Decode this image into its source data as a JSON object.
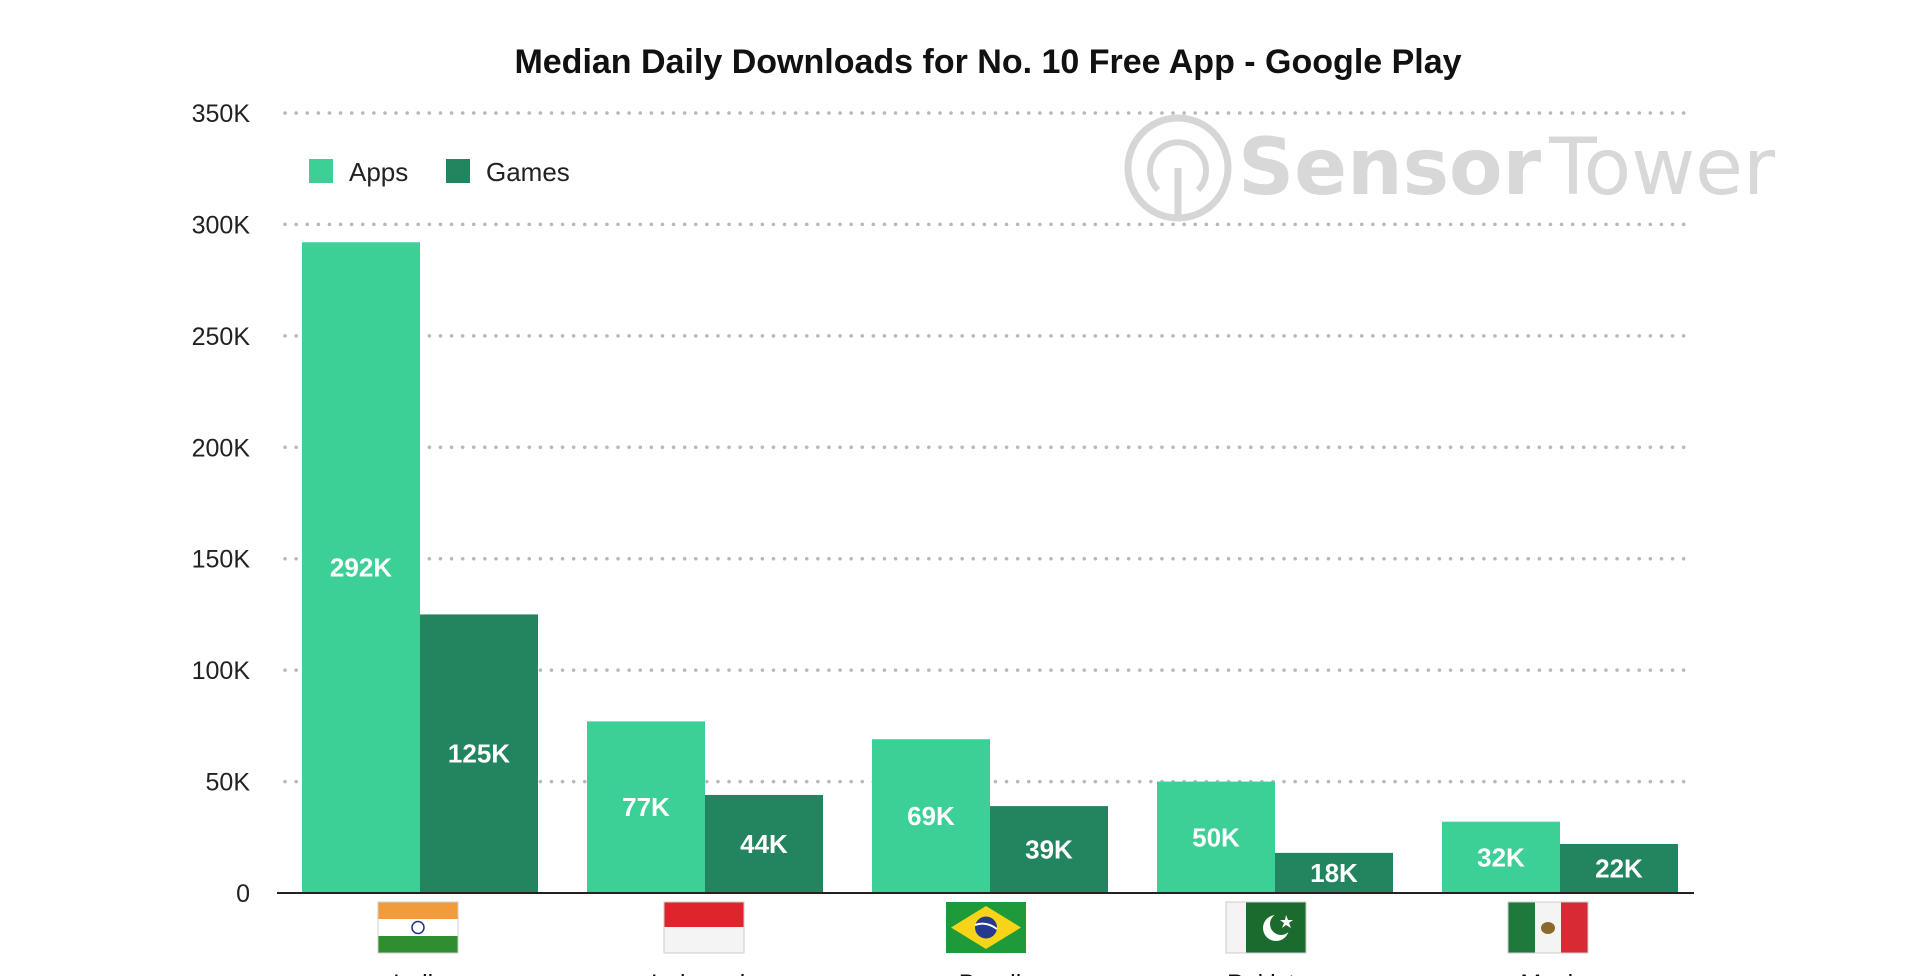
{
  "chart_data": {
    "type": "bar",
    "title": "Median Daily Downloads for No. 10 Free App - Google Play",
    "xlabel": "",
    "ylabel": "",
    "categories": [
      "India",
      "Indonesia",
      "Brazil",
      "Pakistan",
      "Mexico"
    ],
    "series": [
      {
        "name": "Apps",
        "color": "#3ccf96",
        "values": [
          292000,
          77000,
          69000,
          50000,
          32000
        ],
        "labels": [
          "292K",
          "77K",
          "69K",
          "50K",
          "32K"
        ]
      },
      {
        "name": "Games",
        "color": "#23855f",
        "values": [
          125000,
          44000,
          39000,
          18000,
          22000
        ],
        "labels": [
          "125K",
          "44K",
          "39K",
          "18K",
          "22K"
        ]
      }
    ],
    "ylim": [
      0,
      350000
    ],
    "yticks": [
      0,
      50000,
      100000,
      150000,
      200000,
      250000,
      300000,
      350000
    ],
    "ytick_labels": [
      "0",
      "50K",
      "100K",
      "150K",
      "200K",
      "250K",
      "300K",
      "350K"
    ],
    "grid": "dotted horizontal",
    "legend_position": "top-left",
    "flag_icons": [
      "india-flag-icon",
      "indonesia-flag-icon",
      "brazil-flag-icon",
      "pakistan-flag-icon",
      "mexico-flag-icon"
    ]
  },
  "watermark": {
    "brand_bold": "Sensor",
    "brand_light": "Tower",
    "color": "#d8d8d8",
    "icon": "sensor-tower-logo-icon"
  },
  "colors": {
    "grid": "#b8b8b8",
    "axis": "#222222"
  }
}
